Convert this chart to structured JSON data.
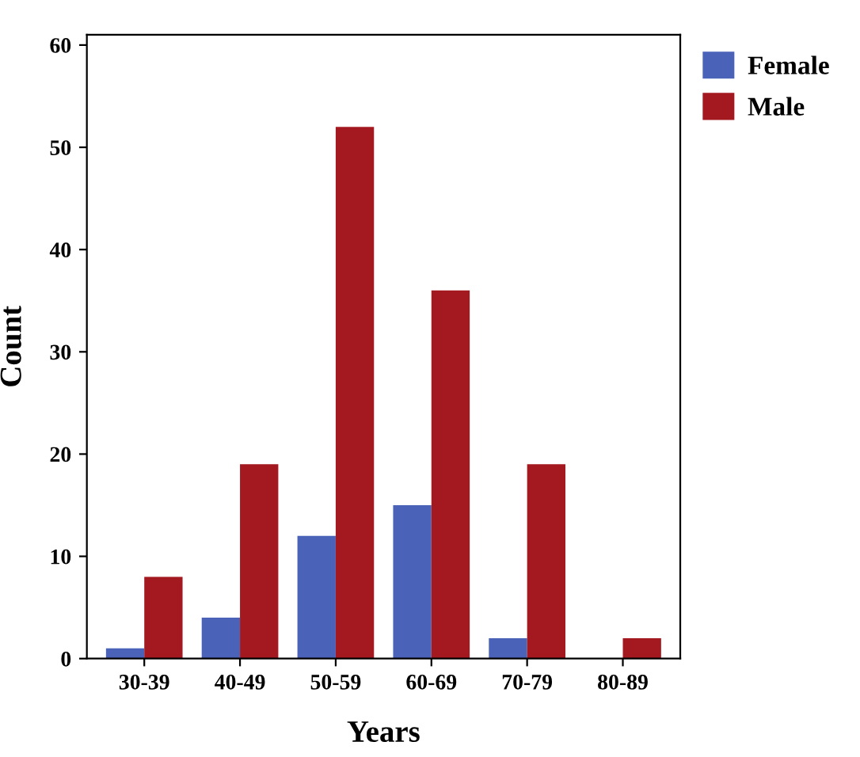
{
  "chart_data": {
    "type": "bar",
    "xlabel": "Years",
    "ylabel": "Count",
    "categories": [
      "30-39",
      "40-49",
      "50-59",
      "60-69",
      "70-79",
      "80-89"
    ],
    "series": [
      {
        "name": "Female",
        "color": "#4a62b8",
        "values": [
          1,
          4,
          12,
          15,
          2,
          0
        ]
      },
      {
        "name": "Male",
        "color": "#a3191f",
        "values": [
          8,
          19,
          52,
          36,
          19,
          2
        ]
      }
    ],
    "ylim": [
      0,
      61
    ],
    "yticks": [
      0,
      10,
      20,
      30,
      40,
      50,
      60
    ],
    "grid": false,
    "legend": "top right"
  }
}
